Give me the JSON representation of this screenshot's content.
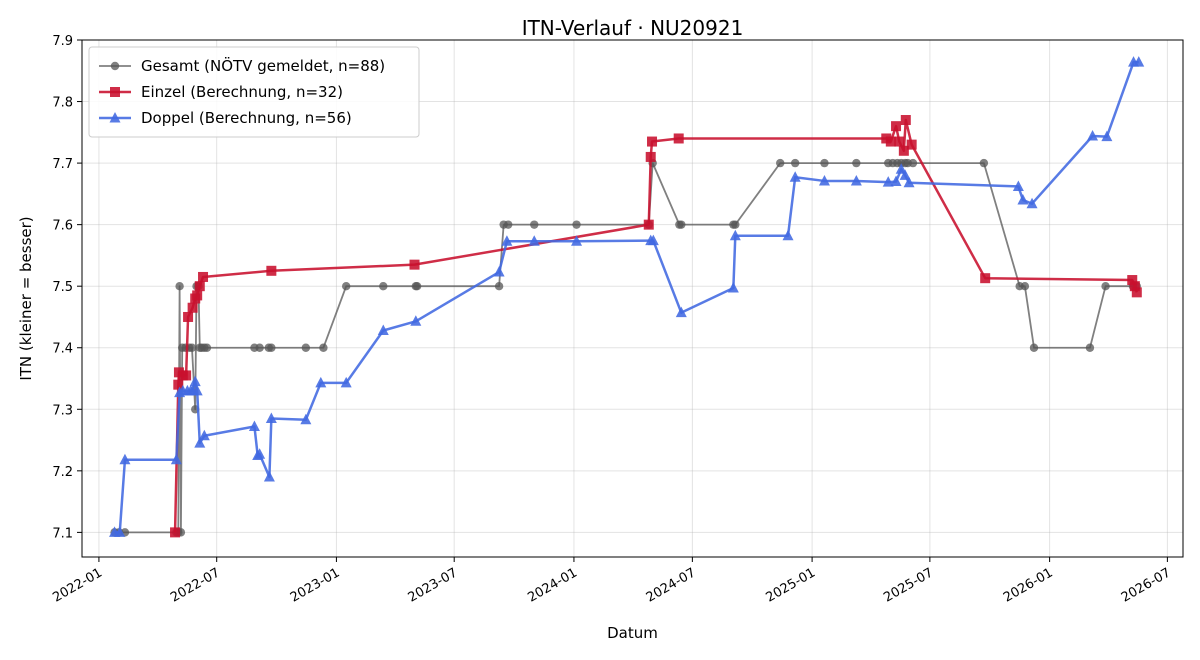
{
  "chart_data": {
    "type": "line",
    "title": "ITN-Verlauf · NU20921",
    "xlabel": "Datum",
    "ylabel": "ITN  (kleiner = besser)",
    "x_type": "date",
    "xlim": [
      "2021-12-06",
      "2026-07-25"
    ],
    "ylim": [
      7.06,
      7.9
    ],
    "x_ticks": [
      {
        "value": "2022-01-01",
        "label": "2022-01"
      },
      {
        "value": "2022-07-01",
        "label": "2022-07"
      },
      {
        "value": "2023-01-01",
        "label": "2023-01"
      },
      {
        "value": "2023-07-01",
        "label": "2023-07"
      },
      {
        "value": "2024-01-01",
        "label": "2024-01"
      },
      {
        "value": "2024-07-01",
        "label": "2024-07"
      },
      {
        "value": "2025-01-01",
        "label": "2025-01"
      },
      {
        "value": "2025-07-01",
        "label": "2025-07"
      },
      {
        "value": "2026-01-01",
        "label": "2026-01"
      },
      {
        "value": "2026-07-01",
        "label": "2026-07"
      }
    ],
    "y_ticks": [
      {
        "value": 7.1,
        "label": "7.1"
      },
      {
        "value": 7.2,
        "label": "7.2"
      },
      {
        "value": 7.3,
        "label": "7.3"
      },
      {
        "value": 7.4,
        "label": "7.4"
      },
      {
        "value": 7.5,
        "label": "7.5"
      },
      {
        "value": 7.6,
        "label": "7.6"
      },
      {
        "value": 7.7,
        "label": "7.7"
      },
      {
        "value": 7.8,
        "label": "7.8"
      },
      {
        "value": 7.9,
        "label": "7.9"
      }
    ],
    "grid": true,
    "legend_position": "top-left",
    "series": [
      {
        "name": "Gesamt (NÖTV gemeldet, n=88)",
        "color": "#555555",
        "marker": "circle",
        "points": [
          [
            "2022-01-25",
            7.1
          ],
          [
            "2022-02-01",
            7.1
          ],
          [
            "2022-02-10",
            7.1
          ],
          [
            "2022-04-30",
            7.1
          ],
          [
            "2022-05-03",
            7.1
          ],
          [
            "2022-05-05",
            7.5
          ],
          [
            "2022-05-07",
            7.1
          ],
          [
            "2022-05-09",
            7.4
          ],
          [
            "2022-05-14",
            7.4
          ],
          [
            "2022-05-20",
            7.4
          ],
          [
            "2022-05-24",
            7.4
          ],
          [
            "2022-05-29",
            7.3
          ],
          [
            "2022-05-31",
            7.5
          ],
          [
            "2022-06-03",
            7.5
          ],
          [
            "2022-06-05",
            7.4
          ],
          [
            "2022-06-08",
            7.4
          ],
          [
            "2022-06-12",
            7.4
          ],
          [
            "2022-06-16",
            7.4
          ],
          [
            "2022-08-28",
            7.4
          ],
          [
            "2022-09-05",
            7.4
          ],
          [
            "2022-09-19",
            7.4
          ],
          [
            "2022-09-23",
            7.4
          ],
          [
            "2022-11-15",
            7.4
          ],
          [
            "2022-12-12",
            7.4
          ],
          [
            "2023-01-16",
            7.5
          ],
          [
            "2023-03-14",
            7.5
          ],
          [
            "2023-05-03",
            7.5
          ],
          [
            "2023-05-05",
            7.5
          ],
          [
            "2023-09-08",
            7.5
          ],
          [
            "2023-09-15",
            7.6
          ],
          [
            "2023-09-22",
            7.6
          ],
          [
            "2023-11-01",
            7.6
          ],
          [
            "2024-01-05",
            7.6
          ],
          [
            "2024-04-25",
            7.6
          ],
          [
            "2024-05-01",
            7.7
          ],
          [
            "2024-06-11",
            7.6
          ],
          [
            "2024-06-14",
            7.6
          ],
          [
            "2024-09-02",
            7.6
          ],
          [
            "2024-09-05",
            7.6
          ],
          [
            "2024-11-13",
            7.7
          ],
          [
            "2024-12-06",
            7.7
          ],
          [
            "2025-01-20",
            7.7
          ],
          [
            "2025-03-10",
            7.7
          ],
          [
            "2025-04-28",
            7.7
          ],
          [
            "2025-05-05",
            7.7
          ],
          [
            "2025-05-12",
            7.7
          ],
          [
            "2025-05-18",
            7.7
          ],
          [
            "2025-05-24",
            7.7
          ],
          [
            "2025-05-28",
            7.7
          ],
          [
            "2025-06-05",
            7.7
          ],
          [
            "2025-09-22",
            7.7
          ],
          [
            "2025-11-16",
            7.5
          ],
          [
            "2025-11-24",
            7.5
          ],
          [
            "2025-12-08",
            7.4
          ],
          [
            "2026-03-04",
            7.4
          ],
          [
            "2026-03-28",
            7.5
          ],
          [
            "2026-05-09",
            7.5
          ],
          [
            "2026-05-15",
            7.5
          ]
        ]
      },
      {
        "name": "Einzel (Berechnung, n=32)",
        "color": "#c8102e",
        "marker": "square",
        "points": [
          [
            "2022-04-28",
            7.1
          ],
          [
            "2022-05-03",
            7.34
          ],
          [
            "2022-05-04",
            7.36
          ],
          [
            "2022-05-10",
            7.355
          ],
          [
            "2022-05-15",
            7.355
          ],
          [
            "2022-05-18",
            7.45
          ],
          [
            "2022-05-25",
            7.465
          ],
          [
            "2022-05-29",
            7.48
          ],
          [
            "2022-06-01",
            7.485
          ],
          [
            "2022-06-05",
            7.5
          ],
          [
            "2022-06-10",
            7.515
          ],
          [
            "2022-09-23",
            7.525
          ],
          [
            "2023-05-01",
            7.535
          ],
          [
            "2024-04-25",
            7.6
          ],
          [
            "2024-04-28",
            7.71
          ],
          [
            "2024-04-30",
            7.735
          ],
          [
            "2024-06-10",
            7.74
          ],
          [
            "2025-04-25",
            7.74
          ],
          [
            "2025-05-02",
            7.735
          ],
          [
            "2025-05-10",
            7.76
          ],
          [
            "2025-05-15",
            7.735
          ],
          [
            "2025-05-22",
            7.72
          ],
          [
            "2025-05-25",
            7.77
          ],
          [
            "2025-06-03",
            7.73
          ],
          [
            "2025-09-24",
            7.513
          ],
          [
            "2026-05-08",
            7.51
          ],
          [
            "2026-05-12",
            7.5
          ],
          [
            "2026-05-15",
            7.49
          ]
        ]
      },
      {
        "name": "Doppel (Berechnung, n=56)",
        "color": "#4169e1",
        "marker": "triangle",
        "points": [
          [
            "2022-01-25",
            7.1
          ],
          [
            "2022-02-02",
            7.1
          ],
          [
            "2022-02-10",
            7.218
          ],
          [
            "2022-04-30",
            7.218
          ],
          [
            "2022-05-05",
            7.327
          ],
          [
            "2022-05-10",
            7.33
          ],
          [
            "2022-05-17",
            7.33
          ],
          [
            "2022-05-22",
            7.33
          ],
          [
            "2022-05-25",
            7.33
          ],
          [
            "2022-05-29",
            7.345
          ],
          [
            "2022-06-01",
            7.33
          ],
          [
            "2022-06-05",
            7.245
          ],
          [
            "2022-06-12",
            7.257
          ],
          [
            "2022-08-28",
            7.272
          ],
          [
            "2022-09-02",
            7.225
          ],
          [
            "2022-09-05",
            7.227
          ],
          [
            "2022-09-20",
            7.19
          ],
          [
            "2022-09-23",
            7.285
          ],
          [
            "2022-11-15",
            7.283
          ],
          [
            "2022-12-08",
            7.343
          ],
          [
            "2023-01-16",
            7.343
          ],
          [
            "2023-03-14",
            7.428
          ],
          [
            "2023-05-03",
            7.443
          ],
          [
            "2023-09-08",
            7.523
          ],
          [
            "2023-09-20",
            7.573
          ],
          [
            "2023-11-01",
            7.573
          ],
          [
            "2024-01-05",
            7.573
          ],
          [
            "2024-04-28",
            7.574
          ],
          [
            "2024-05-02",
            7.574
          ],
          [
            "2024-06-14",
            7.457
          ],
          [
            "2024-09-02",
            7.497
          ],
          [
            "2024-09-05",
            7.582
          ],
          [
            "2024-11-25",
            7.582
          ],
          [
            "2024-12-06",
            7.677
          ],
          [
            "2025-01-20",
            7.671
          ],
          [
            "2025-03-10",
            7.671
          ],
          [
            "2025-04-28",
            7.669
          ],
          [
            "2025-05-10",
            7.67
          ],
          [
            "2025-05-18",
            7.69
          ],
          [
            "2025-05-24",
            7.68
          ],
          [
            "2025-05-30",
            7.668
          ],
          [
            "2025-11-14",
            7.662
          ],
          [
            "2025-11-21",
            7.64
          ],
          [
            "2025-12-05",
            7.634
          ],
          [
            "2026-03-08",
            7.744
          ],
          [
            "2026-03-30",
            7.743
          ],
          [
            "2026-05-10",
            7.864
          ],
          [
            "2026-05-18",
            7.864
          ]
        ]
      }
    ]
  }
}
